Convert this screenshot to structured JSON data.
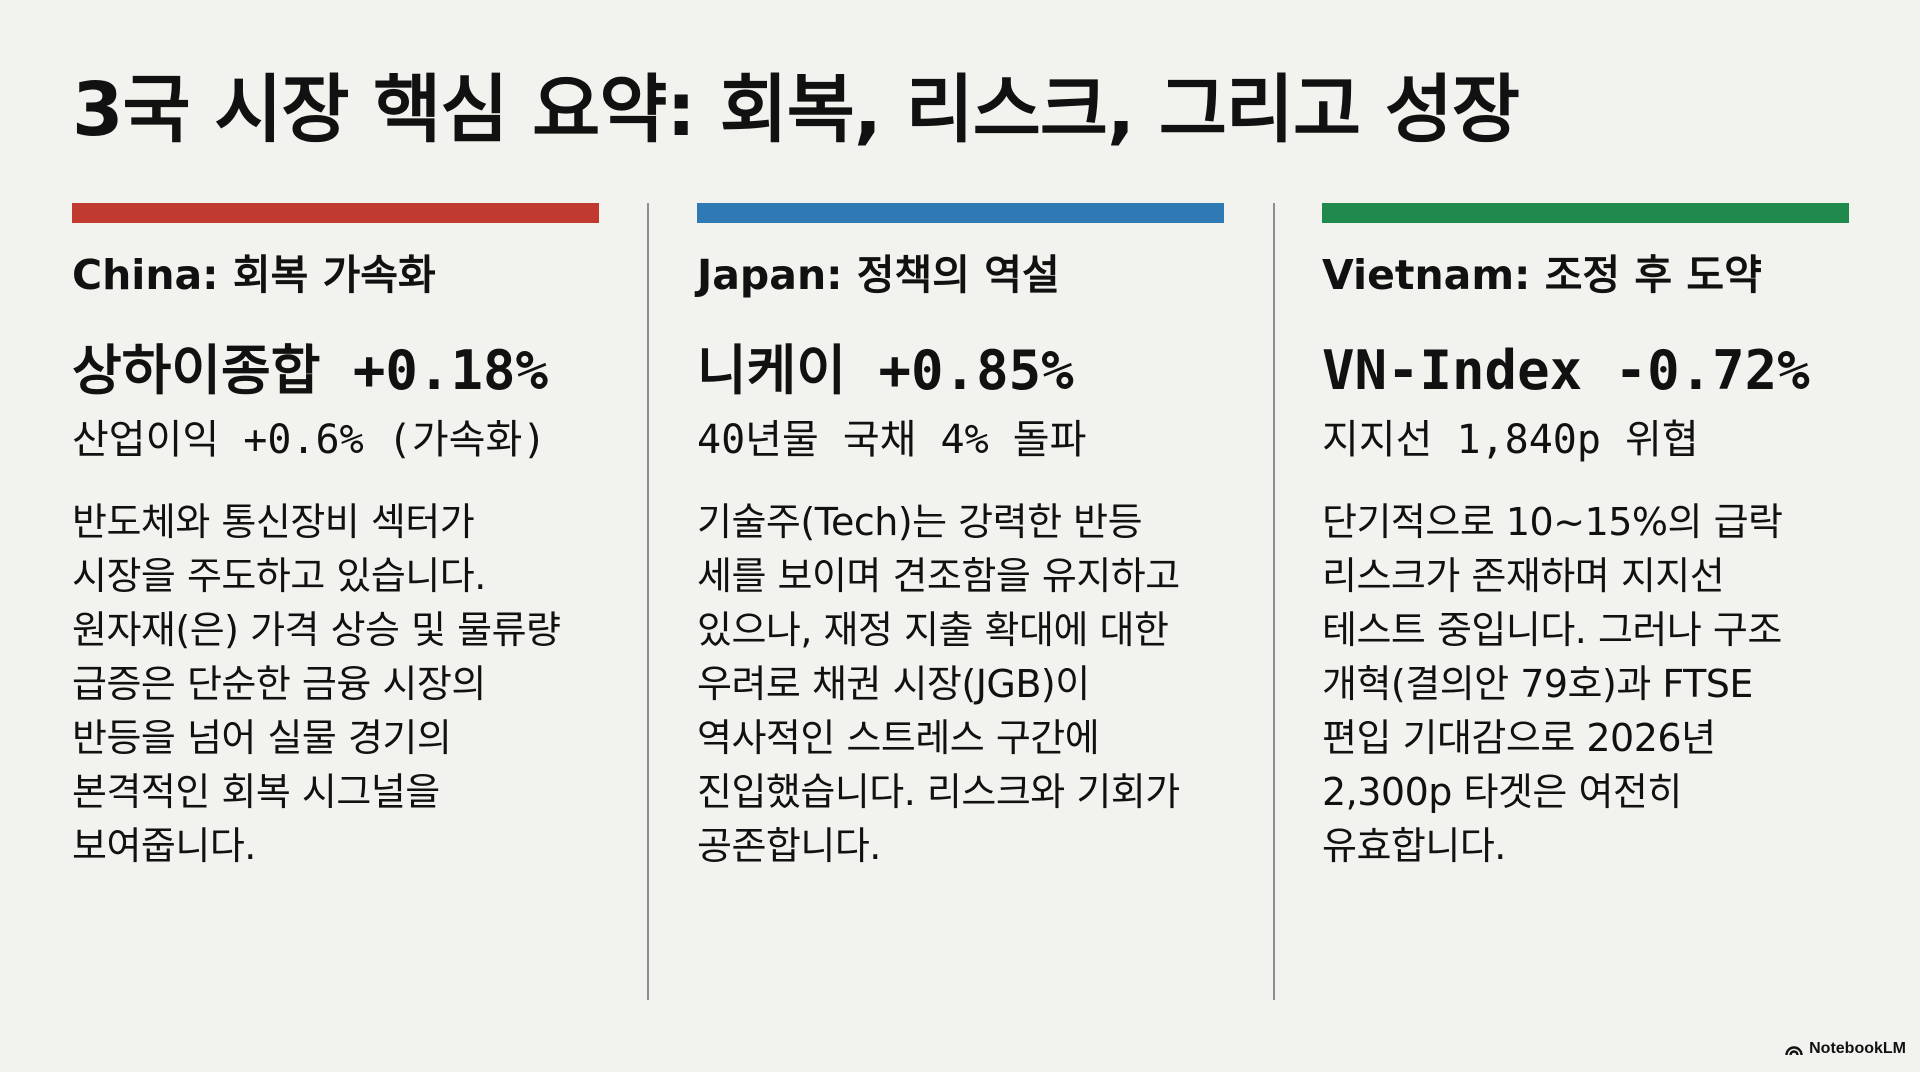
{
  "title": "3국 시장 핵심 요약: 회복, 리스크, 그리고 성장",
  "columns": [
    {
      "accent_color": "#c03a2f",
      "heading": "China: 회복 가속화",
      "metric": "상하이종합 +0.18%",
      "sub_metric": "산업이익 +0.6% (가속화)",
      "body_lines": [
        "반도체와 통신장비 섹터가",
        "시장을 주도하고 있습니다.",
        "원자재(은) 가격 상승 및 물류량",
        "급증은 단순한 금융 시장의",
        "반등을 넘어 실물 경기의",
        "본격적인 회복 시그널을",
        "보여줍니다."
      ]
    },
    {
      "accent_color": "#2f79b4",
      "heading": "Japan: 정책의 역설",
      "metric": "니케이 +0.85%",
      "sub_metric": "40년물 국채 4% 돌파",
      "body_lines": [
        "기술주(Tech)는 강력한 반등",
        "세를 보이며 견조함을 유지하고",
        "있으나, 재정 지출 확대에 대한",
        "우려로 채권 시장(JGB)이",
        "역사적인 스트레스 구간에",
        "진입했습니다. 리스크와 기회가",
        "공존합니다."
      ]
    },
    {
      "accent_color": "#1f8a4c",
      "heading": "Vietnam: 조정 후 도약",
      "metric": "VN-Index -0.72%",
      "sub_metric": "지지선 1,840p 위협",
      "body_lines": [
        "단기적으로 10~15%의 급락",
        "리스크가 존재하며 지지선",
        "테스트 중입니다. 그러나 구조",
        "개혁(결의안 79호)과 FTSE",
        "편입 기대감으로 2026년",
        "2,300p 타겟은 여전히",
        "유효합니다."
      ]
    }
  ],
  "brand": {
    "icon": "notebooklm-icon",
    "label": "NotebookLM"
  }
}
